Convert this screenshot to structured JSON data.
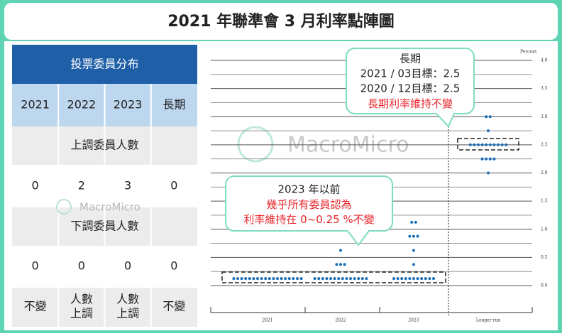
{
  "title": "2021 年聯準會 3 月利率點陣圖",
  "table": {
    "header": "投票委員分布",
    "columns": [
      "2021",
      "2022",
      "2023",
      "長期"
    ],
    "sections": [
      {
        "title": "上調委員人數",
        "values": [
          0,
          2,
          3,
          0
        ]
      },
      {
        "title": "下調委員人數",
        "values": [
          0,
          0,
          0,
          0
        ]
      }
    ],
    "footer": [
      [
        "不變"
      ],
      [
        "人數",
        "上調"
      ],
      [
        "人數",
        "上調"
      ],
      [
        "不變"
      ]
    ]
  },
  "watermarks": [
    "MacroMicro",
    "MacroMicro"
  ],
  "chart_data": {
    "type": "dot",
    "y_label": "Percent",
    "columns": [
      {
        "label": "2021",
        "rates": [
          0.125
        ],
        "counts": [
          18
        ]
      },
      {
        "label": "2022",
        "rates": [
          0.125,
          0.375,
          0.625
        ],
        "counts": [
          14,
          3,
          1
        ]
      },
      {
        "label": "2023",
        "rates": [
          0.125,
          0.375,
          0.625,
          0.875,
          1.125
        ],
        "counts": [
          11,
          1,
          1,
          3,
          2
        ]
      },
      {
        "label": "Longer run",
        "rates": [
          2.0,
          2.25,
          2.5,
          2.75,
          3.0
        ],
        "counts": [
          1,
          4,
          10,
          1,
          2
        ]
      }
    ],
    "color": "#1a6fb5",
    "ylim": [
      0,
      4
    ],
    "yticks": [
      {
        "value": 0,
        "label": "0.0"
      },
      0.5,
      {
        "value": 1,
        "label": "1.0"
      },
      1.5,
      {
        "value": 2,
        "label": "2.0"
      },
      2.5,
      {
        "value": 3,
        "label": "3.0"
      },
      3.5,
      {
        "value": 4,
        "label": "4.0"
      }
    ],
    "grid": true,
    "annotations": [
      {
        "lines": [
          "長期",
          "2021 / 03目標：2.5",
          "2020 / 12目標：2.5"
        ],
        "highlight": "長期利率維持不變"
      },
      {
        "lines": [
          "2023 年以前"
        ],
        "highlight": "幾乎所有委員認為\n利率維持在 0~0.25 %不變"
      }
    ]
  }
}
